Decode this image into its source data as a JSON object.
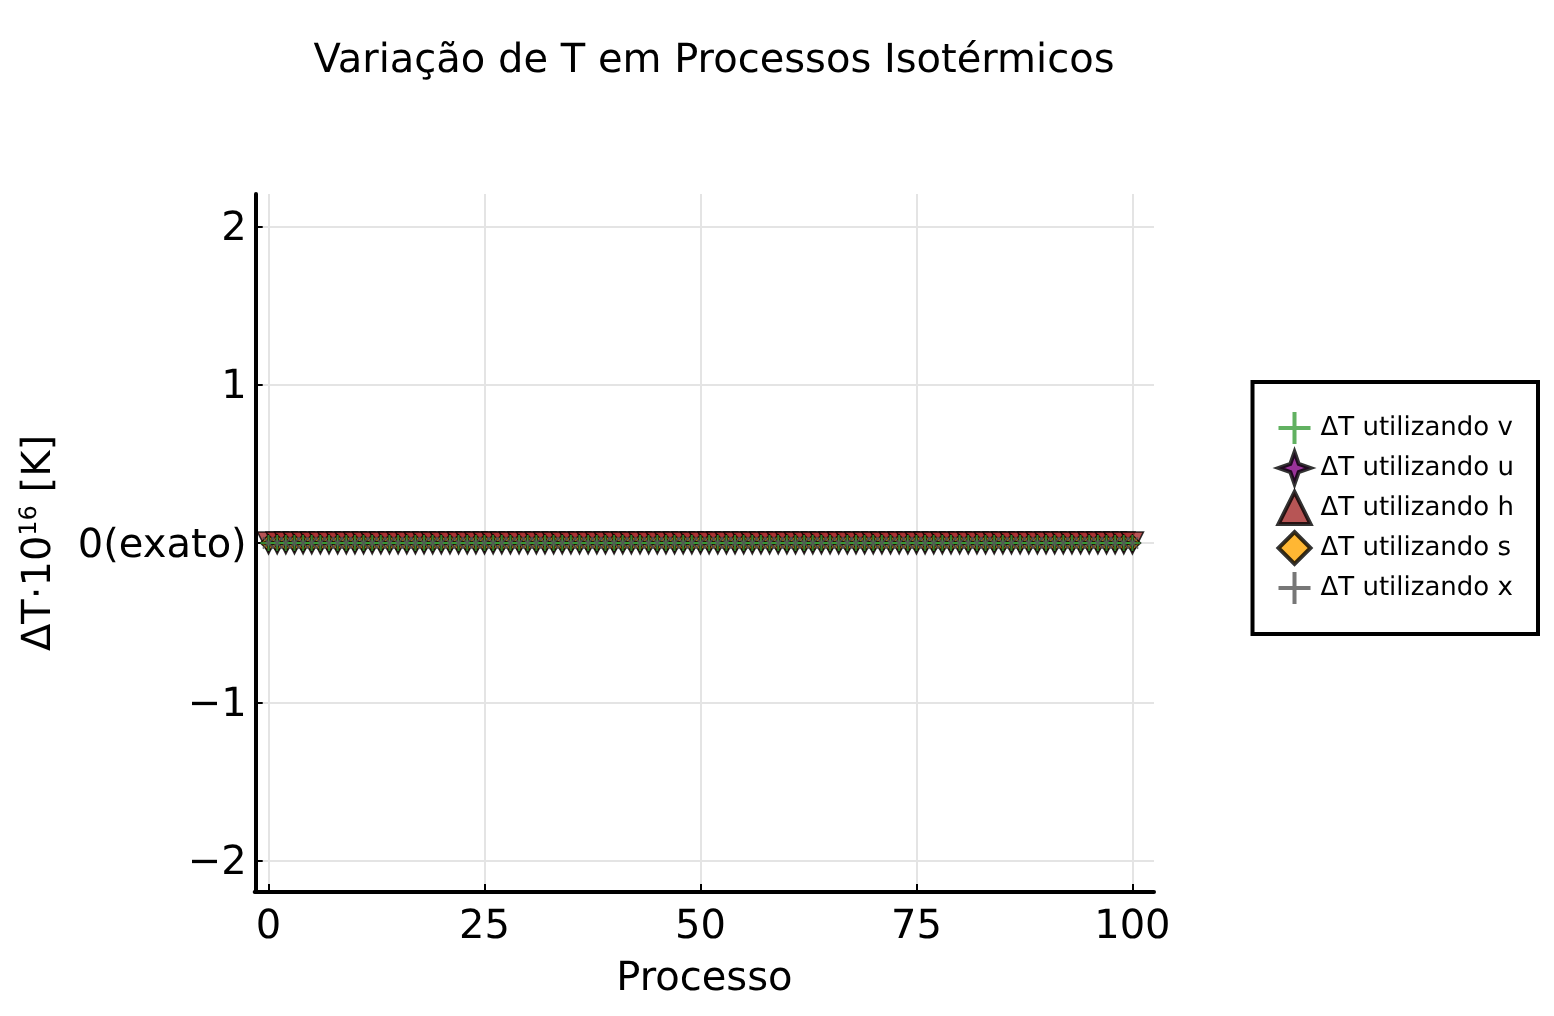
{
  "chart_data": {
    "type": "scatter",
    "title": "Variação de T em Processos Isotérmicos",
    "xlabel": "Processo",
    "ylabel": "ΔT·10$^{16}$ [K]",
    "x": [
      0,
      1,
      2,
      3,
      4,
      5,
      6,
      7,
      8,
      9,
      10,
      11,
      12,
      13,
      14,
      15,
      16,
      17,
      18,
      19,
      20,
      21,
      22,
      23,
      24,
      25,
      26,
      27,
      28,
      29,
      30,
      31,
      32,
      33,
      34,
      35,
      36,
      37,
      38,
      39,
      40,
      41,
      42,
      43,
      44,
      45,
      46,
      47,
      48,
      49,
      50,
      51,
      52,
      53,
      54,
      55,
      56,
      57,
      58,
      59,
      60,
      61,
      62,
      63,
      64,
      65,
      66,
      67,
      68,
      69,
      70,
      71,
      72,
      73,
      74,
      75,
      76,
      77,
      78,
      79,
      80,
      81,
      82,
      83,
      84,
      85,
      86,
      87,
      88,
      89,
      90,
      91,
      92,
      93,
      94,
      95,
      96,
      97,
      98,
      99,
      100
    ],
    "series": [
      {
        "name": "ΔT utilizando v",
        "color": "#3a9e3a",
        "marker": "cross",
        "values": [
          0,
          0,
          0,
          0,
          0,
          0,
          0,
          0,
          0,
          0,
          0,
          0,
          0,
          0,
          0,
          0,
          0,
          0,
          0,
          0,
          0,
          0,
          0,
          0,
          0,
          0,
          0,
          0,
          0,
          0,
          0,
          0,
          0,
          0,
          0,
          0,
          0,
          0,
          0,
          0,
          0,
          0,
          0,
          0,
          0,
          0,
          0,
          0,
          0,
          0,
          0,
          0,
          0,
          0,
          0,
          0,
          0,
          0,
          0,
          0,
          0,
          0,
          0,
          0,
          0,
          0,
          0,
          0,
          0,
          0,
          0,
          0,
          0,
          0,
          0,
          0,
          0,
          0,
          0,
          0,
          0,
          0,
          0,
          0,
          0,
          0,
          0,
          0,
          0,
          0,
          0,
          0,
          0,
          0,
          0,
          0,
          0,
          0,
          0,
          0,
          0
        ]
      },
      {
        "name": "ΔT utilizando u",
        "color": "#800080",
        "marker": "star",
        "values": [
          0,
          0,
          0,
          0,
          0,
          0,
          0,
          0,
          0,
          0,
          0,
          0,
          0,
          0,
          0,
          0,
          0,
          0,
          0,
          0,
          0,
          0,
          0,
          0,
          0,
          0,
          0,
          0,
          0,
          0,
          0,
          0,
          0,
          0,
          0,
          0,
          0,
          0,
          0,
          0,
          0,
          0,
          0,
          0,
          0,
          0,
          0,
          0,
          0,
          0,
          0,
          0,
          0,
          0,
          0,
          0,
          0,
          0,
          0,
          0,
          0,
          0,
          0,
          0,
          0,
          0,
          0,
          0,
          0,
          0,
          0,
          0,
          0,
          0,
          0,
          0,
          0,
          0,
          0,
          0,
          0,
          0,
          0,
          0,
          0,
          0,
          0,
          0,
          0,
          0,
          0,
          0,
          0,
          0,
          0,
          0,
          0,
          0,
          0,
          0,
          0
        ]
      },
      {
        "name": "ΔT utilizando h",
        "color": "#a52a2a",
        "marker": "triangle",
        "values": [
          0,
          0,
          0,
          0,
          0,
          0,
          0,
          0,
          0,
          0,
          0,
          0,
          0,
          0,
          0,
          0,
          0,
          0,
          0,
          0,
          0,
          0,
          0,
          0,
          0,
          0,
          0,
          0,
          0,
          0,
          0,
          0,
          0,
          0,
          0,
          0,
          0,
          0,
          0,
          0,
          0,
          0,
          0,
          0,
          0,
          0,
          0,
          0,
          0,
          0,
          0,
          0,
          0,
          0,
          0,
          0,
          0,
          0,
          0,
          0,
          0,
          0,
          0,
          0,
          0,
          0,
          0,
          0,
          0,
          0,
          0,
          0,
          0,
          0,
          0,
          0,
          0,
          0,
          0,
          0,
          0,
          0,
          0,
          0,
          0,
          0,
          0,
          0,
          0,
          0,
          0,
          0,
          0,
          0,
          0,
          0,
          0,
          0,
          0,
          0,
          0
        ]
      },
      {
        "name": "ΔT utilizando s",
        "color": "#ffa500",
        "marker": "diamond",
        "values": [
          0,
          0,
          0,
          0,
          0,
          0,
          0,
          0,
          0,
          0,
          0,
          0,
          0,
          0,
          0,
          0,
          0,
          0,
          0,
          0,
          0,
          0,
          0,
          0,
          0,
          0,
          0,
          0,
          0,
          0,
          0,
          0,
          0,
          0,
          0,
          0,
          0,
          0,
          0,
          0,
          0,
          0,
          0,
          0,
          0,
          0,
          0,
          0,
          0,
          0,
          0,
          0,
          0,
          0,
          0,
          0,
          0,
          0,
          0,
          0,
          0,
          0,
          0,
          0,
          0,
          0,
          0,
          0,
          0,
          0,
          0,
          0,
          0,
          0,
          0,
          0,
          0,
          0,
          0,
          0,
          0,
          0,
          0,
          0,
          0,
          0,
          0,
          0,
          0,
          0,
          0,
          0,
          0,
          0,
          0,
          0,
          0,
          0,
          0,
          0,
          0
        ]
      },
      {
        "name": "ΔT utilizando x",
        "color": "#555555",
        "marker": "x",
        "values": [
          0,
          0,
          0,
          0,
          0,
          0,
          0,
          0,
          0,
          0,
          0,
          0,
          0,
          0,
          0,
          0,
          0,
          0,
          0,
          0,
          0,
          0,
          0,
          0,
          0,
          0,
          0,
          0,
          0,
          0,
          0,
          0,
          0,
          0,
          0,
          0,
          0,
          0,
          0,
          0,
          0,
          0,
          0,
          0,
          0,
          0,
          0,
          0,
          0,
          0,
          0,
          0,
          0,
          0,
          0,
          0,
          0,
          0,
          0,
          0,
          0,
          0,
          0,
          0,
          0,
          0,
          0,
          0,
          0,
          0,
          0,
          0,
          0,
          0,
          0,
          0,
          0,
          0,
          0,
          0,
          0,
          0,
          0,
          0,
          0,
          0,
          0,
          0,
          0,
          0,
          0,
          0,
          0,
          0,
          0,
          0,
          0,
          0,
          0,
          0,
          0
        ]
      }
    ],
    "xlim": [
      -1.6,
      102.5
    ],
    "xticks": [
      0,
      25,
      50,
      75,
      100
    ],
    "ylim": [
      -2.2,
      2.2
    ],
    "yticks": [
      -2,
      -1,
      {
        "value": 0,
        "label": "0(exato)"
      },
      1,
      2
    ],
    "grid": true,
    "legend": "right"
  }
}
